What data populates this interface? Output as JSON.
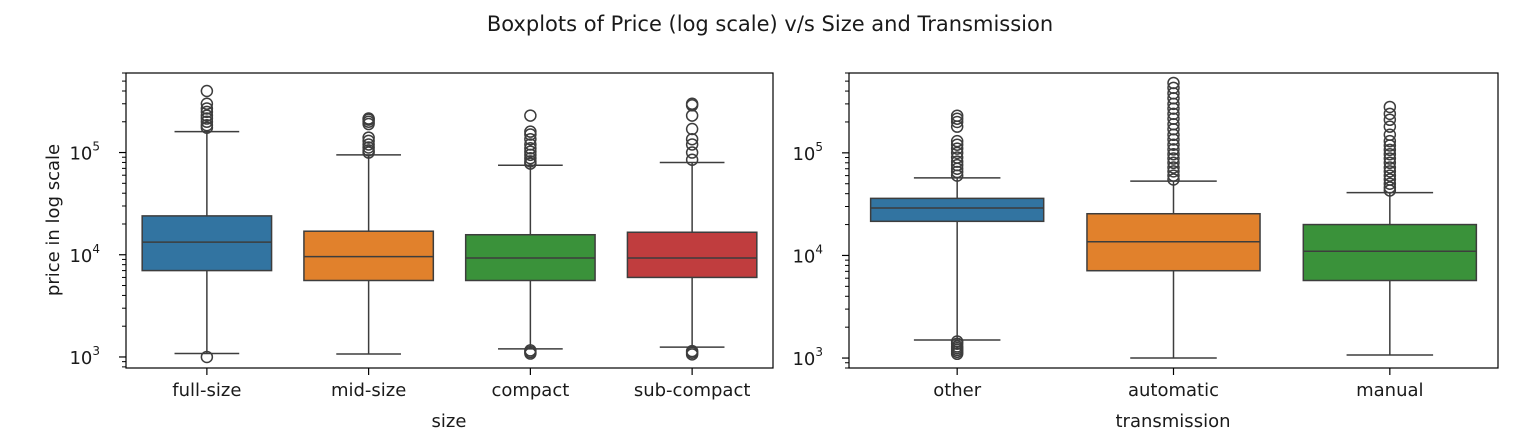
{
  "figure": {
    "title": "Boxplots of Price (log scale) v/s Size and Transmission"
  },
  "chart_data": [
    {
      "type": "box",
      "xlabel": "size",
      "ylabel": "price in log scale",
      "yscale": "log",
      "ylim": [
        780,
        600000
      ],
      "ytick_values": [
        1000,
        10000,
        100000
      ],
      "ytick_bases": [
        "10",
        "10",
        "10"
      ],
      "ytick_exps": [
        "3",
        "4",
        "5"
      ],
      "grid": false,
      "categories": [
        "full-size",
        "mid-size",
        "compact",
        "sub-compact"
      ],
      "colors": [
        "#3274a1",
        "#e1812c",
        "#3a923a",
        "#c03d3e"
      ],
      "boxes": [
        {
          "whislo": 1080,
          "q1": 7000,
          "med": 13300,
          "q3": 24000,
          "whishi": 160000,
          "fliers": [
            1000,
            175000,
            185000,
            200000,
            215000,
            230000,
            250000,
            270000,
            300000,
            400000
          ]
        },
        {
          "whislo": 1070,
          "q1": 5600,
          "med": 9600,
          "q3": 17000,
          "whishi": 95000,
          "fliers": [
            100000,
            105000,
            112000,
            120000,
            130000,
            140000,
            190000,
            200000,
            210000,
            215000
          ]
        },
        {
          "whislo": 1200,
          "q1": 5600,
          "med": 9300,
          "q3": 15700,
          "whishi": 75000,
          "fliers": [
            1080,
            1120,
            1160,
            78000,
            82000,
            88000,
            95000,
            102000,
            110000,
            120000,
            135000,
            150000,
            160000,
            230000
          ]
        },
        {
          "whislo": 1250,
          "q1": 6000,
          "med": 9300,
          "q3": 16600,
          "whishi": 80000,
          "fliers": [
            1060,
            1100,
            1140,
            85000,
            100000,
            120000,
            135000,
            170000,
            230000,
            290000,
            300000
          ]
        }
      ]
    },
    {
      "type": "box",
      "xlabel": "transmission",
      "ylabel": "",
      "yscale": "log",
      "ylim": [
        800,
        600000
      ],
      "ytick_values": [
        1000,
        10000,
        100000
      ],
      "ytick_bases": [
        "10",
        "10",
        "10"
      ],
      "ytick_exps": [
        "3",
        "4",
        "5"
      ],
      "grid": false,
      "categories": [
        "other",
        "automatic",
        "manual"
      ],
      "colors": [
        "#3274a1",
        "#e1812c",
        "#3a923a"
      ],
      "boxes": [
        {
          "whislo": 1500,
          "q1": 21500,
          "med": 29000,
          "q3": 36000,
          "whishi": 57000,
          "fliers": [
            1100,
            1150,
            1200,
            1250,
            1300,
            1380,
            1450,
            60000,
            65000,
            70000,
            76000,
            82000,
            90000,
            100000,
            110000,
            120000,
            130000,
            180000,
            200000,
            215000,
            230000
          ]
        },
        {
          "whislo": 1000,
          "q1": 7100,
          "med": 13600,
          "q3": 25500,
          "whishi": 53000,
          "fliers": [
            55000,
            60000,
            66000,
            72000,
            80000,
            88000,
            97000,
            108000,
            120000,
            135000,
            150000,
            170000,
            190000,
            215000,
            240000,
            270000,
            300000,
            340000,
            380000,
            430000,
            480000
          ]
        },
        {
          "whislo": 1070,
          "q1": 5700,
          "med": 11000,
          "q3": 20000,
          "whishi": 41000,
          "fliers": [
            43000,
            46000,
            50000,
            55000,
            60000,
            66000,
            72000,
            80000,
            88000,
            97000,
            107000,
            118000,
            130000,
            150000,
            180000,
            210000,
            240000,
            280000
          ]
        }
      ]
    }
  ]
}
